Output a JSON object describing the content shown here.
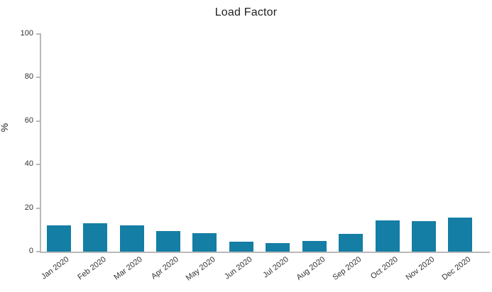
{
  "chart_data": {
    "type": "bar",
    "title": "Load Factor",
    "xlabel": "",
    "ylabel": "%",
    "categories": [
      "Jan 2020",
      "Feb 2020",
      "Mar 2020",
      "Apr 2020",
      "May 2020",
      "Jun 2020",
      "Jul 2020",
      "Aug 2020",
      "Sep 2020",
      "Oct 2020",
      "Nov 2020",
      "Dec 2020"
    ],
    "values": [
      12,
      13,
      12,
      9.5,
      8.5,
      4.5,
      4,
      5,
      8,
      14.5,
      14,
      15.5
    ],
    "ylim": [
      0,
      100
    ],
    "yticks": [
      0,
      20,
      40,
      60,
      80,
      100
    ],
    "grid": false,
    "legend": "none",
    "bar_color": "#147ea4",
    "axis_color": "#b9b9b9",
    "text_color": "#333333",
    "title_color": "#1f1f1f"
  }
}
